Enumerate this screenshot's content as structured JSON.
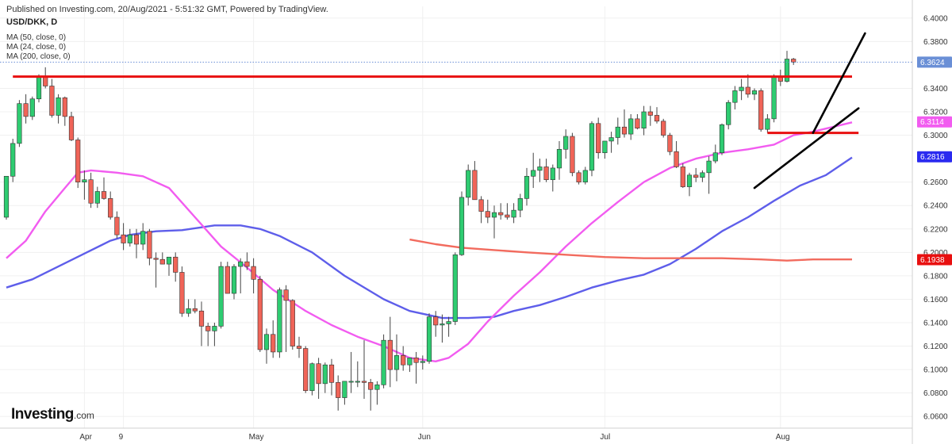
{
  "header": {
    "published": "Published on Investing.com, 20/Aug/2021 - 5:51:32 GMT, Powered by TradingView.",
    "symbol": "USD/DKK, D",
    "indicators": [
      "MA (50, close, 0)",
      "MA (24, close, 0)",
      "MA (200, close, 0)"
    ]
  },
  "logo": {
    "text": "Investing",
    "suffix": ".com"
  },
  "colors": {
    "up": "#2ECC71",
    "down": "#F06458",
    "ma50": "#5E5EEA",
    "ma24": "#F25CF0",
    "ma200": "#F26B5E",
    "resistance": "#E81010",
    "trendline": "#000000",
    "last_price_line": "#6A8FD6"
  },
  "chart_data": {
    "type": "candlestick",
    "symbol": "USD/DKK",
    "interval": "D",
    "ylim": [
      6.05,
      6.41
    ],
    "y_ticks": [
      "6.4000",
      "6.3800",
      "6.3400",
      "6.3200",
      "6.3000",
      "6.2600",
      "6.2400",
      "6.2200",
      "6.2000",
      "6.1800",
      "6.1600",
      "6.1400",
      "6.1200",
      "6.1000",
      "6.0800",
      "6.0600"
    ],
    "x_labels": [
      {
        "label": "Apr",
        "index": 12
      },
      {
        "label": "9",
        "index": 18
      },
      {
        "label": "May",
        "index": 38
      },
      {
        "label": "Jun",
        "index": 64
      },
      {
        "label": "Jul",
        "index": 92
      },
      {
        "label": "Aug",
        "index": 119
      }
    ],
    "candles": [
      [
        6.23,
        6.265,
        6.228,
        6.265
      ],
      [
        6.265,
        6.297,
        6.26,
        6.293
      ],
      [
        6.293,
        6.33,
        6.29,
        6.327
      ],
      [
        6.327,
        6.335,
        6.31,
        6.316
      ],
      [
        6.316,
        6.333,
        6.313,
        6.331
      ],
      [
        6.331,
        6.352,
        6.328,
        6.35
      ],
      [
        6.35,
        6.358,
        6.34,
        6.342
      ],
      [
        6.342,
        6.348,
        6.315,
        6.317
      ],
      [
        6.317,
        6.335,
        6.31,
        6.332
      ],
      [
        6.332,
        6.333,
        6.308,
        6.316
      ],
      [
        6.316,
        6.32,
        6.295,
        6.296
      ],
      [
        6.296,
        6.298,
        6.255,
        6.26
      ],
      [
        6.26,
        6.27,
        6.245,
        6.262
      ],
      [
        6.262,
        6.268,
        6.238,
        6.242
      ],
      [
        6.242,
        6.256,
        6.238,
        6.252
      ],
      [
        6.252,
        6.264,
        6.245,
        6.246
      ],
      [
        6.246,
        6.252,
        6.228,
        6.23
      ],
      [
        6.23,
        6.235,
        6.212,
        6.215
      ],
      [
        6.215,
        6.225,
        6.202,
        6.208
      ],
      [
        6.208,
        6.22,
        6.205,
        6.215
      ],
      [
        6.215,
        6.22,
        6.195,
        6.207
      ],
      [
        6.207,
        6.225,
        6.202,
        6.218
      ],
      [
        6.218,
        6.22,
        6.189,
        6.195
      ],
      [
        6.195,
        6.2,
        6.17,
        6.194
      ],
      [
        6.194,
        6.2,
        6.19,
        6.19
      ],
      [
        6.19,
        6.196,
        6.18,
        6.196
      ],
      [
        6.196,
        6.2,
        6.175,
        6.183
      ],
      [
        6.183,
        6.188,
        6.145,
        6.148
      ],
      [
        6.148,
        6.16,
        6.145,
        6.152
      ],
      [
        6.152,
        6.16,
        6.148,
        6.15
      ],
      [
        6.15,
        6.158,
        6.12,
        6.137
      ],
      [
        6.137,
        6.14,
        6.12,
        6.133
      ],
      [
        6.133,
        6.14,
        6.12,
        6.137
      ],
      [
        6.137,
        6.192,
        6.135,
        6.188
      ],
      [
        6.188,
        6.192,
        6.165,
        6.165
      ],
      [
        6.165,
        6.19,
        6.16,
        6.188
      ],
      [
        6.188,
        6.195,
        6.165,
        6.192
      ],
      [
        6.192,
        6.2,
        6.185,
        6.188
      ],
      [
        6.188,
        6.195,
        6.165,
        6.177
      ],
      [
        6.177,
        6.18,
        6.115,
        6.117
      ],
      [
        6.117,
        6.135,
        6.105,
        6.13
      ],
      [
        6.13,
        6.142,
        6.11,
        6.115
      ],
      [
        6.115,
        6.17,
        6.11,
        6.168
      ],
      [
        6.168,
        6.172,
        6.115,
        6.159
      ],
      [
        6.159,
        6.16,
        6.117,
        6.12
      ],
      [
        6.12,
        6.128,
        6.11,
        6.118
      ],
      [
        6.118,
        6.12,
        6.08,
        6.082
      ],
      [
        6.082,
        6.106,
        6.078,
        6.105
      ],
      [
        6.105,
        6.11,
        6.075,
        6.088
      ],
      [
        6.088,
        6.106,
        6.08,
        6.104
      ],
      [
        6.104,
        6.109,
        6.078,
        6.089
      ],
      [
        6.089,
        6.095,
        6.065,
        6.076
      ],
      [
        6.076,
        6.09,
        6.07,
        6.09
      ],
      [
        6.09,
        6.115,
        6.08,
        6.09
      ],
      [
        6.09,
        6.107,
        6.085,
        6.09
      ],
      [
        6.09,
        6.125,
        6.075,
        6.089
      ],
      [
        6.089,
        6.092,
        6.065,
        6.083
      ],
      [
        6.083,
        6.09,
        6.07,
        6.087
      ],
      [
        6.087,
        6.13,
        6.084,
        6.125
      ],
      [
        6.125,
        6.145,
        6.085,
        6.1
      ],
      [
        6.1,
        6.13,
        6.09,
        6.112
      ],
      [
        6.112,
        6.12,
        6.099,
        6.104
      ],
      [
        6.104,
        6.11,
        6.098,
        6.11
      ],
      [
        6.11,
        6.115,
        6.088,
        6.106
      ],
      [
        6.106,
        6.112,
        6.1,
        6.107
      ],
      [
        6.107,
        6.148,
        6.105,
        6.145
      ],
      [
        6.145,
        6.15,
        6.128,
        6.138
      ],
      [
        6.138,
        6.147,
        6.123,
        6.139
      ],
      [
        6.139,
        6.145,
        6.128,
        6.141
      ],
      [
        6.141,
        6.2,
        6.138,
        6.198
      ],
      [
        6.198,
        6.252,
        6.197,
        6.247
      ],
      [
        6.247,
        6.275,
        6.24,
        6.27
      ],
      [
        6.27,
        6.278,
        6.245,
        6.245
      ],
      [
        6.245,
        6.248,
        6.225,
        6.235
      ],
      [
        6.235,
        6.245,
        6.225,
        6.23
      ],
      [
        6.23,
        6.24,
        6.212,
        6.234
      ],
      [
        6.234,
        6.242,
        6.228,
        6.232
      ],
      [
        6.232,
        6.242,
        6.228,
        6.23
      ],
      [
        6.23,
        6.242,
        6.225,
        6.236
      ],
      [
        6.236,
        6.25,
        6.23,
        6.246
      ],
      [
        6.246,
        6.272,
        6.24,
        6.265
      ],
      [
        6.265,
        6.285,
        6.255,
        6.27
      ],
      [
        6.27,
        6.28,
        6.26,
        6.273
      ],
      [
        6.273,
        6.28,
        6.26,
        6.262
      ],
      [
        6.262,
        6.275,
        6.252,
        6.272
      ],
      [
        6.272,
        6.295,
        6.262,
        6.288
      ],
      [
        6.288,
        6.305,
        6.28,
        6.299
      ],
      [
        6.299,
        6.302,
        6.265,
        6.268
      ],
      [
        6.268,
        6.27,
        6.258,
        6.26
      ],
      [
        6.26,
        6.273,
        6.258,
        6.27
      ],
      [
        6.27,
        6.312,
        6.265,
        6.31
      ],
      [
        6.31,
        6.315,
        6.28,
        6.285
      ],
      [
        6.285,
        6.295,
        6.28,
        6.295
      ],
      [
        6.295,
        6.303,
        6.285,
        6.298
      ],
      [
        6.298,
        6.315,
        6.292,
        6.307
      ],
      [
        6.307,
        6.322,
        6.298,
        6.301
      ],
      [
        6.301,
        6.318,
        6.296,
        6.314
      ],
      [
        6.314,
        6.318,
        6.305,
        6.306
      ],
      [
        6.306,
        6.325,
        6.3,
        6.32
      ],
      [
        6.32,
        6.325,
        6.308,
        6.317
      ],
      [
        6.317,
        6.324,
        6.31,
        6.312
      ],
      [
        6.312,
        6.314,
        6.298,
        6.3
      ],
      [
        6.3,
        6.302,
        6.283,
        6.286
      ],
      [
        6.286,
        6.295,
        6.272,
        6.273
      ],
      [
        6.273,
        6.276,
        6.255,
        6.256
      ],
      [
        6.256,
        6.268,
        6.248,
        6.266
      ],
      [
        6.266,
        6.272,
        6.26,
        6.264
      ],
      [
        6.264,
        6.27,
        6.26,
        6.268
      ],
      [
        6.268,
        6.282,
        6.25,
        6.278
      ],
      [
        6.278,
        6.292,
        6.276,
        6.285
      ],
      [
        6.285,
        6.31,
        6.283,
        6.309
      ],
      [
        6.309,
        6.33,
        6.305,
        6.328
      ],
      [
        6.328,
        6.342,
        6.322,
        6.338
      ],
      [
        6.338,
        6.348,
        6.33,
        6.341
      ],
      [
        6.341,
        6.352,
        6.332,
        6.335
      ],
      [
        6.335,
        6.34,
        6.33,
        6.338
      ],
      [
        6.338,
        6.34,
        6.303,
        6.305
      ],
      [
        6.305,
        6.318,
        6.302,
        6.314
      ],
      [
        6.314,
        6.352,
        6.311,
        6.35
      ],
      [
        6.35,
        6.356,
        6.342,
        6.346
      ],
      [
        6.346,
        6.372,
        6.345,
        6.365
      ],
      [
        6.365,
        6.366,
        6.36,
        6.3624
      ]
    ],
    "moving_averages": [
      {
        "name": "MA (50, close, 0)",
        "start_index": 0,
        "points": [
          [
            0,
            6.17
          ],
          [
            4,
            6.177
          ],
          [
            8,
            6.188
          ],
          [
            12,
            6.199
          ],
          [
            16,
            6.21
          ],
          [
            19,
            6.215
          ],
          [
            23,
            6.218
          ],
          [
            27,
            6.219
          ],
          [
            32,
            6.223
          ],
          [
            36,
            6.223
          ],
          [
            39,
            6.22
          ],
          [
            42,
            6.214
          ],
          [
            47,
            6.2
          ],
          [
            52,
            6.18
          ],
          [
            58,
            6.16
          ],
          [
            62,
            6.15
          ],
          [
            67,
            6.144
          ],
          [
            71,
            6.144
          ],
          [
            75,
            6.145
          ],
          [
            78,
            6.15
          ],
          [
            82,
            6.155
          ],
          [
            86,
            6.162
          ],
          [
            90,
            6.17
          ],
          [
            94,
            6.176
          ],
          [
            98,
            6.181
          ],
          [
            102,
            6.19
          ],
          [
            106,
            6.203
          ],
          [
            110,
            6.218
          ],
          [
            114,
            6.23
          ],
          [
            118,
            6.244
          ],
          [
            122,
            6.257
          ],
          [
            126,
            6.266
          ],
          [
            130,
            6.281
          ]
        ]
      },
      {
        "name": "MA (24, close, 0)",
        "start_index": 0,
        "points": [
          [
            0,
            6.195
          ],
          [
            3,
            6.21
          ],
          [
            6,
            6.235
          ],
          [
            9,
            6.255
          ],
          [
            11,
            6.268
          ],
          [
            13,
            6.27
          ],
          [
            17,
            6.268
          ],
          [
            21,
            6.265
          ],
          [
            25,
            6.255
          ],
          [
            29,
            6.23
          ],
          [
            33,
            6.205
          ],
          [
            37,
            6.187
          ],
          [
            41,
            6.168
          ],
          [
            46,
            6.15
          ],
          [
            50,
            6.138
          ],
          [
            54,
            6.128
          ],
          [
            58,
            6.12
          ],
          [
            62,
            6.11
          ],
          [
            66,
            6.107
          ],
          [
            68,
            6.11
          ],
          [
            71,
            6.122
          ],
          [
            74,
            6.141
          ],
          [
            78,
            6.163
          ],
          [
            82,
            6.183
          ],
          [
            86,
            6.205
          ],
          [
            90,
            6.225
          ],
          [
            94,
            6.243
          ],
          [
            98,
            6.26
          ],
          [
            102,
            6.272
          ],
          [
            106,
            6.28
          ],
          [
            110,
            6.285
          ],
          [
            114,
            6.288
          ],
          [
            118,
            6.292
          ],
          [
            121,
            6.3
          ],
          [
            124,
            6.303
          ],
          [
            127,
            6.307
          ],
          [
            130,
            6.311
          ]
        ]
      },
      {
        "name": "MA (200, close, 0)",
        "start_index": 62,
        "points": [
          [
            62,
            6.211
          ],
          [
            66,
            6.207
          ],
          [
            70,
            6.204
          ],
          [
            75,
            6.202
          ],
          [
            80,
            6.2
          ],
          [
            86,
            6.198
          ],
          [
            92,
            6.196
          ],
          [
            98,
            6.195
          ],
          [
            104,
            6.195
          ],
          [
            110,
            6.195
          ],
          [
            116,
            6.194
          ],
          [
            120,
            6.193
          ],
          [
            124,
            6.194
          ],
          [
            128,
            6.194
          ],
          [
            130,
            6.194
          ]
        ]
      }
    ],
    "horizontal_lines": [
      {
        "name": "resistance",
        "value": 6.35,
        "from_index": 1,
        "to_index": 130
      },
      {
        "name": "support",
        "value": 6.302,
        "from_index": 117,
        "to_index": 131
      }
    ],
    "trendlines": [
      {
        "from": [
          115,
          6.255
        ],
        "to": [
          131,
          6.323
        ]
      },
      {
        "from": [
          124,
          6.302
        ],
        "to": [
          132,
          6.387
        ]
      }
    ],
    "price_tags": [
      {
        "label": "6.3624",
        "value": 6.3624,
        "color": "#6A8FD6"
      },
      {
        "label": "6.3114",
        "value": 6.3114,
        "color": "#F25CF0"
      },
      {
        "label": "6.2816",
        "value": 6.2816,
        "color": "#2A2AF0"
      },
      {
        "label": "6.1938",
        "value": 6.1938,
        "color": "#E81010"
      }
    ]
  }
}
